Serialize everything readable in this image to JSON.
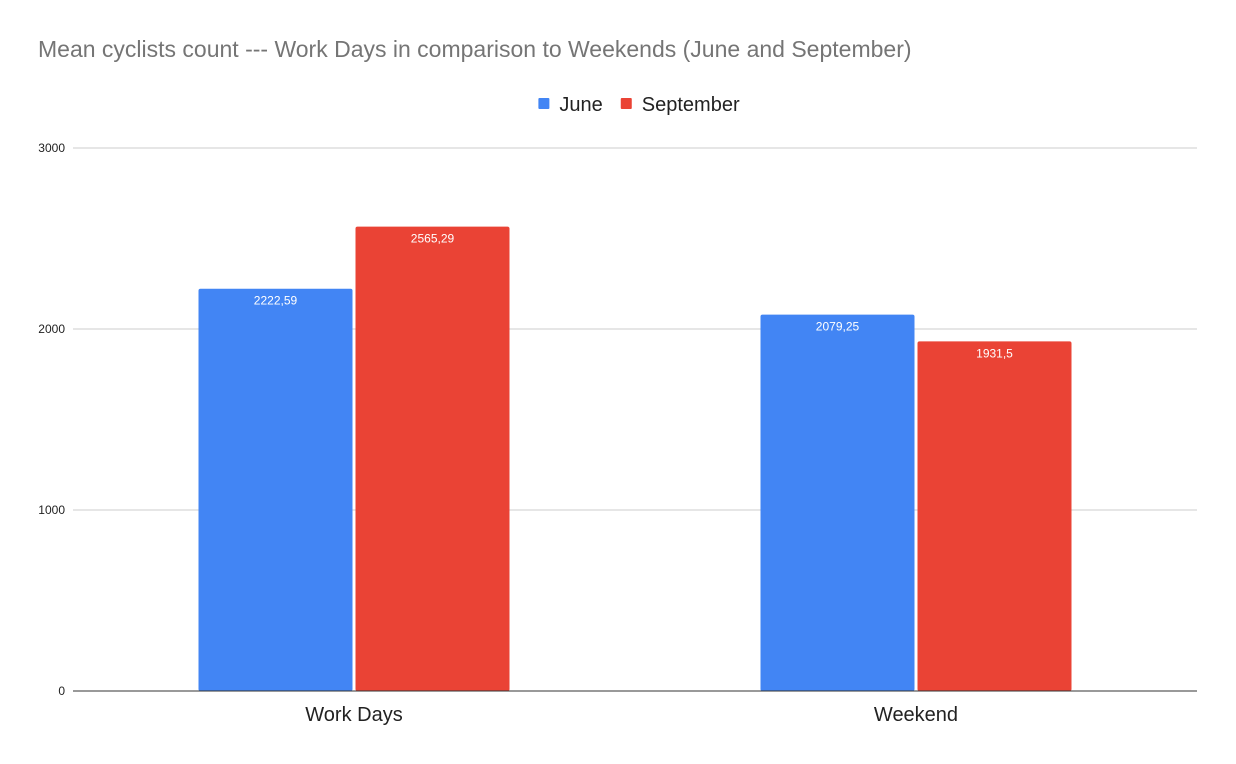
{
  "chart_data": {
    "type": "bar",
    "title": "Mean cyclists count --- Work Days in comparison to Weekends (June and September)",
    "categories": [
      "Work Days",
      "Weekend"
    ],
    "series": [
      {
        "name": "June",
        "color": "#4285f4",
        "values": [
          2222.59,
          2079.25
        ],
        "labels": [
          "2222,59",
          "2079,25"
        ]
      },
      {
        "name": "September",
        "color": "#ea4335",
        "values": [
          2565.29,
          1931.5
        ],
        "labels": [
          "2565,29",
          "1931,5"
        ]
      }
    ],
    "ylim": [
      0,
      3000
    ],
    "yticks": [
      0,
      1000,
      2000,
      3000
    ],
    "ytick_labels": [
      "0",
      "1000",
      "2000",
      "3000"
    ],
    "grid": true,
    "legend_position": "top-center"
  }
}
